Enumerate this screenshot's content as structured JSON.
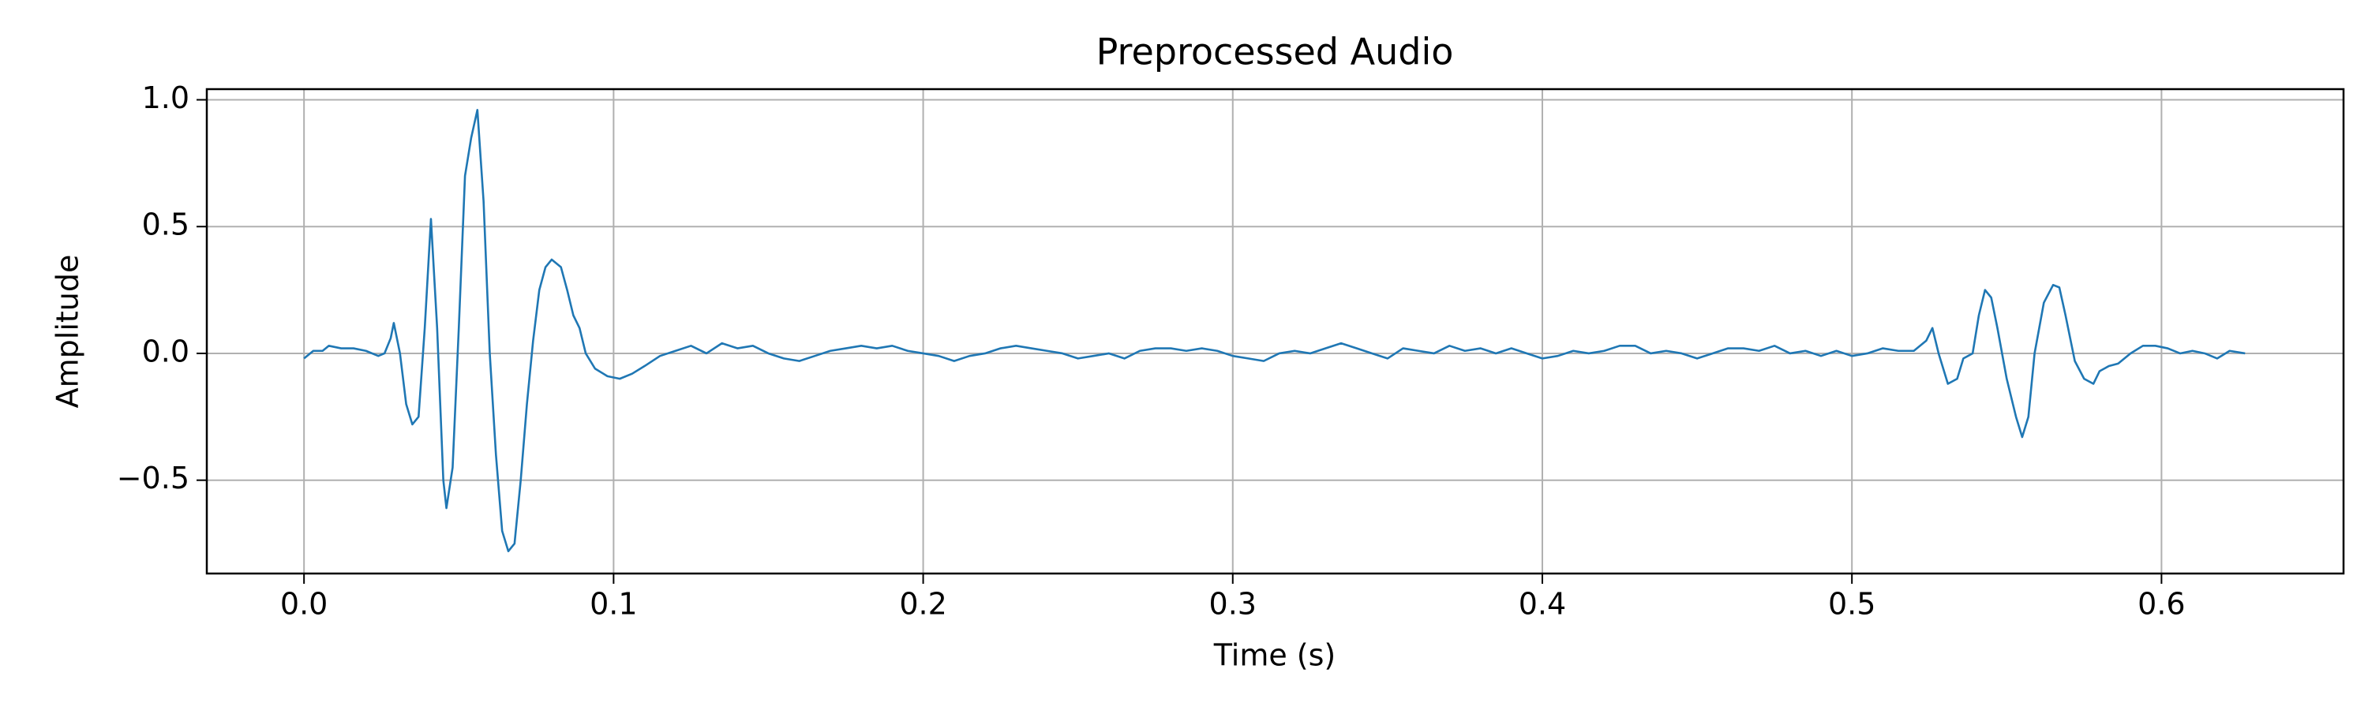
{
  "chart_data": {
    "type": "line",
    "title": "Preprocessed Audio",
    "x_label": "Time (s)",
    "y_label": "Amplitude",
    "xlim": [
      -0.0314,
      0.6588
    ],
    "ylim": [
      -0.868,
      1.042
    ],
    "xticks": [
      {
        "value": 0,
        "label": "0.0"
      },
      0.1,
      0.2,
      0.3,
      0.4,
      0.5,
      0.6
    ],
    "yticks": [
      {
        "value": -0.5,
        "label": "−0.5"
      },
      {
        "value": 0,
        "label": "0.0"
      },
      0.5,
      {
        "value": 1,
        "label": "1.0"
      }
    ],
    "grid": true,
    "x": [
      0,
      0.003,
      0.006,
      0.008,
      0.012,
      0.016,
      0.02,
      0.024,
      0.026,
      0.028,
      0.029,
      0.031,
      0.033,
      0.035,
      0.037,
      0.039,
      0.041,
      0.043,
      0.045,
      0.046,
      0.048,
      0.05,
      0.052,
      0.054,
      0.056,
      0.058,
      0.06,
      0.062,
      0.064,
      0.066,
      0.068,
      0.07,
      0.072,
      0.074,
      0.076,
      0.078,
      0.08,
      0.083,
      0.085,
      0.087,
      0.089,
      0.091,
      0.094,
      0.098,
      0.102,
      0.106,
      0.11,
      0.115,
      0.12,
      0.125,
      0.13,
      0.135,
      0.14,
      0.145,
      0.15,
      0.155,
      0.16,
      0.165,
      0.17,
      0.175,
      0.18,
      0.185,
      0.19,
      0.195,
      0.2,
      0.205,
      0.21,
      0.215,
      0.22,
      0.225,
      0.23,
      0.235,
      0.24,
      0.245,
      0.25,
      0.255,
      0.26,
      0.265,
      0.27,
      0.275,
      0.28,
      0.285,
      0.29,
      0.295,
      0.3,
      0.305,
      0.31,
      0.315,
      0.32,
      0.325,
      0.33,
      0.335,
      0.34,
      0.345,
      0.35,
      0.355,
      0.36,
      0.365,
      0.37,
      0.375,
      0.38,
      0.385,
      0.39,
      0.395,
      0.4,
      0.405,
      0.41,
      0.415,
      0.42,
      0.425,
      0.43,
      0.435,
      0.44,
      0.445,
      0.45,
      0.455,
      0.46,
      0.465,
      0.47,
      0.475,
      0.48,
      0.485,
      0.49,
      0.495,
      0.5,
      0.505,
      0.51,
      0.515,
      0.52,
      0.524,
      0.526,
      0.528,
      0.531,
      0.534,
      0.536,
      0.539,
      0.541,
      0.543,
      0.545,
      0.547,
      0.55,
      0.553,
      0.555,
      0.557,
      0.559,
      0.562,
      0.565,
      0.567,
      0.569,
      0.572,
      0.575,
      0.578,
      0.58,
      0.583,
      0.586,
      0.59,
      0.594,
      0.598,
      0.602,
      0.606,
      0.61,
      0.614,
      0.618,
      0.622,
      0.627
    ],
    "series": [
      {
        "color": "#1f77b4",
        "values": [
          -0.02,
          0.01,
          0.01,
          0.03,
          0.02,
          0.02,
          0.01,
          -0.01,
          0.0,
          0.06,
          0.12,
          0.0,
          -0.2,
          -0.28,
          -0.25,
          0.1,
          0.53,
          0.1,
          -0.5,
          -0.61,
          -0.45,
          0.1,
          0.7,
          0.85,
          0.96,
          0.6,
          0.0,
          -0.4,
          -0.7,
          -0.78,
          -0.75,
          -0.5,
          -0.2,
          0.05,
          0.25,
          0.34,
          0.37,
          0.34,
          0.25,
          0.15,
          0.1,
          0.0,
          -0.06,
          -0.09,
          -0.1,
          -0.08,
          -0.05,
          -0.01,
          0.01,
          0.03,
          0.0,
          0.04,
          0.02,
          0.03,
          0.0,
          -0.02,
          -0.03,
          -0.01,
          0.01,
          0.02,
          0.03,
          0.02,
          0.03,
          0.01,
          0.0,
          -0.01,
          -0.03,
          -0.01,
          0.0,
          0.02,
          0.03,
          0.02,
          0.01,
          0.0,
          -0.02,
          -0.01,
          0.0,
          -0.02,
          0.01,
          0.02,
          0.02,
          0.01,
          0.02,
          0.01,
          -0.01,
          -0.02,
          -0.03,
          0.0,
          0.01,
          0.0,
          0.02,
          0.04,
          0.02,
          0.0,
          -0.02,
          0.02,
          0.01,
          0.0,
          0.03,
          0.01,
          0.02,
          0.0,
          0.02,
          0.0,
          -0.02,
          -0.01,
          0.01,
          0.0,
          0.01,
          0.03,
          0.03,
          0.0,
          0.01,
          0.0,
          -0.02,
          0.0,
          0.02,
          0.02,
          0.01,
          0.03,
          0.0,
          0.01,
          -0.01,
          0.01,
          -0.01,
          0.0,
          0.02,
          0.01,
          0.01,
          0.05,
          0.1,
          0.0,
          -0.12,
          -0.1,
          -0.02,
          0.0,
          0.15,
          0.25,
          0.22,
          0.1,
          -0.1,
          -0.25,
          -0.33,
          -0.25,
          0.0,
          0.2,
          0.27,
          0.26,
          0.15,
          -0.03,
          -0.1,
          -0.12,
          -0.07,
          -0.05,
          -0.04,
          0.0,
          0.03,
          0.03,
          0.02,
          0.0,
          0.01,
          0.0,
          -0.02,
          0.01,
          0.0
        ]
      }
    ]
  }
}
